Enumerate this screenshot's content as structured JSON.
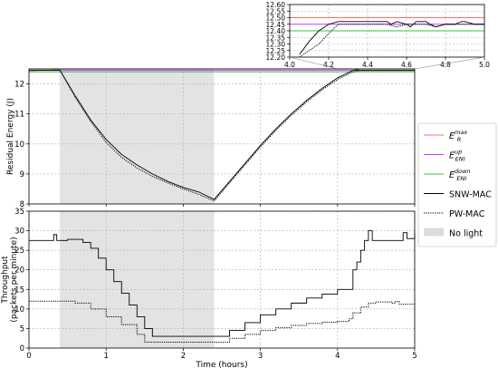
{
  "chart_data": [
    {
      "id": "energy",
      "type": "line",
      "title": "",
      "xlabel": "",
      "ylabel": "Residual Energy (J)",
      "xlim": [
        0,
        5
      ],
      "ylim": [
        8,
        12.5
      ],
      "xticks": [
        0,
        1,
        2,
        3,
        4,
        5
      ],
      "yticks": [
        8,
        9,
        10,
        11,
        12
      ],
      "ytick_labels": [
        "8",
        "9",
        "10",
        "11",
        "12"
      ],
      "grid": true,
      "shaded_region": {
        "x": [
          0.4,
          2.4
        ],
        "label": "No light"
      },
      "hlines": [
        {
          "name": "E_R^max",
          "value": 12.5,
          "color": "#ff6b6b"
        },
        {
          "name": "E_ENI^up",
          "value": 12.45,
          "color": "#c33cff"
        },
        {
          "name": "E_ENI^down",
          "value": 12.4,
          "color": "#3fbf3f"
        }
      ],
      "series": [
        {
          "name": "SNW-MAC",
          "style": "solid",
          "x": [
            0,
            0.4,
            0.6,
            0.8,
            1.0,
            1.2,
            1.4,
            1.6,
            1.8,
            2.0,
            2.2,
            2.4,
            2.6,
            2.8,
            3.0,
            3.2,
            3.4,
            3.6,
            3.8,
            4.0,
            4.2,
            4.25,
            4.3,
            4.4,
            4.6,
            4.8,
            5.0
          ],
          "values": [
            12.45,
            12.46,
            11.6,
            10.8,
            10.15,
            9.65,
            9.3,
            9.0,
            8.75,
            8.55,
            8.4,
            8.15,
            8.75,
            9.35,
            9.95,
            10.5,
            11.0,
            11.45,
            11.85,
            12.2,
            12.45,
            12.47,
            12.45,
            12.45,
            12.45,
            12.45,
            12.45
          ]
        },
        {
          "name": "PW-MAC",
          "style": "dotted",
          "x": [
            0,
            0.4,
            0.6,
            0.8,
            1.0,
            1.2,
            1.4,
            1.6,
            1.8,
            2.0,
            2.2,
            2.4,
            2.6,
            2.8,
            3.0,
            3.2,
            3.4,
            3.6,
            3.8,
            4.0,
            4.2,
            4.3,
            4.4,
            4.6,
            4.8,
            5.0
          ],
          "values": [
            12.45,
            12.46,
            11.55,
            10.75,
            10.05,
            9.55,
            9.2,
            8.92,
            8.7,
            8.5,
            8.32,
            8.1,
            8.7,
            9.3,
            9.9,
            10.45,
            10.95,
            11.4,
            11.8,
            12.15,
            12.4,
            12.45,
            12.45,
            12.45,
            12.45,
            12.45
          ]
        }
      ]
    },
    {
      "id": "throughput",
      "type": "line",
      "title": "",
      "xlabel": "Time (hours)",
      "ylabel_line1": "Throughput",
      "ylabel_line2": "(packets per minute)",
      "xlim": [
        0,
        5
      ],
      "ylim": [
        0,
        35
      ],
      "xticks": [
        0,
        1,
        2,
        3,
        4,
        5
      ],
      "yticks": [
        0,
        5,
        10,
        15,
        20,
        25,
        30,
        35
      ],
      "grid": true,
      "shaded_region": {
        "x": [
          0.4,
          2.4
        ],
        "label": "No light"
      },
      "series": [
        {
          "name": "SNW-MAC",
          "style": "solid",
          "step": true,
          "x": [
            0,
            0.3,
            0.32,
            0.36,
            0.5,
            0.7,
            0.8,
            0.9,
            1.0,
            1.1,
            1.2,
            1.3,
            1.4,
            1.5,
            1.6,
            2.4,
            2.6,
            2.8,
            3.0,
            3.2,
            3.4,
            3.6,
            3.8,
            4.0,
            4.15,
            4.2,
            4.25,
            4.3,
            4.35,
            4.4,
            4.45,
            4.5,
            4.6,
            4.8,
            4.85,
            4.9,
            5.0
          ],
          "values": [
            27.5,
            27.5,
            29,
            27.5,
            27.8,
            27.0,
            25.5,
            23.0,
            20.0,
            17.0,
            14.0,
            11.0,
            8.0,
            5.0,
            3.0,
            3.0,
            4.5,
            6.5,
            8.5,
            10.0,
            11.5,
            12.8,
            13.8,
            15.0,
            15.0,
            20.0,
            22.0,
            25.0,
            27.5,
            30.0,
            27.5,
            27.5,
            27.5,
            27.5,
            29.5,
            28.0,
            29.5
          ]
        },
        {
          "name": "PW-MAC",
          "style": "dotted",
          "step": true,
          "x": [
            0,
            0.4,
            0.6,
            0.8,
            1.0,
            1.2,
            1.4,
            1.5,
            2.4,
            2.6,
            2.8,
            3.0,
            3.2,
            3.4,
            3.6,
            3.8,
            4.0,
            4.15,
            4.2,
            4.3,
            4.4,
            4.5,
            4.7,
            4.75,
            4.8,
            5.0
          ],
          "values": [
            12.0,
            12.0,
            11.5,
            10.0,
            8.0,
            6.0,
            3.5,
            1.5,
            1.5,
            2.5,
            3.5,
            4.5,
            5.2,
            5.8,
            6.3,
            6.6,
            6.8,
            7.5,
            9.0,
            10.5,
            11.5,
            11.8,
            11.5,
            11.9,
            11.2,
            11.2
          ]
        }
      ]
    },
    {
      "id": "inset",
      "type": "line",
      "title": "",
      "xlim": [
        4.0,
        5.0
      ],
      "ylim": [
        12.2,
        12.6
      ],
      "xticks": [
        4.0,
        4.2,
        4.4,
        4.6,
        4.8,
        5.0
      ],
      "xtick_labels": [
        "4.0",
        "4.2",
        "4.4",
        "4.6",
        "4.8",
        "5.0"
      ],
      "yticks": [
        12.2,
        12.25,
        12.3,
        12.35,
        12.4,
        12.45,
        12.5,
        12.55,
        12.6
      ],
      "ytick_labels": [
        "12.20",
        "12.25",
        "12.30",
        "12.35",
        "12.40",
        "12.45",
        "12.50",
        "12.55",
        "12.60"
      ],
      "grid": true,
      "hlines": [
        {
          "name": "E_R^max",
          "value": 12.5,
          "color": "#ff6b6b"
        },
        {
          "name": "E_ENI^up",
          "value": 12.45,
          "color": "#c33cff"
        },
        {
          "name": "E_ENI^down",
          "value": 12.4,
          "color": "#3fbf3f"
        }
      ],
      "series": [
        {
          "name": "SNW-MAC",
          "style": "solid",
          "x": [
            4.05,
            4.1,
            4.15,
            4.2,
            4.25,
            4.3,
            4.35,
            4.4,
            4.45,
            4.5,
            4.52,
            4.55,
            4.6,
            4.62,
            4.65,
            4.7,
            4.72,
            4.75,
            4.8,
            4.85,
            4.88,
            4.9,
            4.95,
            5.0
          ],
          "values": [
            12.22,
            12.32,
            12.4,
            12.45,
            12.47,
            12.47,
            12.47,
            12.47,
            12.47,
            12.47,
            12.45,
            12.47,
            12.45,
            12.43,
            12.47,
            12.47,
            12.45,
            12.43,
            12.45,
            12.45,
            12.47,
            12.47,
            12.45,
            12.45
          ]
        },
        {
          "name": "PW-MAC",
          "style": "dotted",
          "x": [
            4.05,
            4.1,
            4.15,
            4.2,
            4.25,
            4.3,
            4.35,
            4.4,
            4.45,
            4.5,
            4.55,
            4.6,
            4.65,
            4.7,
            4.75,
            4.8,
            4.85,
            4.9,
            4.95,
            5.0
          ],
          "values": [
            12.2,
            12.25,
            12.3,
            12.38,
            12.45,
            12.45,
            12.45,
            12.45,
            12.45,
            12.45,
            12.43,
            12.45,
            12.45,
            12.45,
            12.43,
            12.45,
            12.45,
            12.45,
            12.45,
            12.45
          ]
        }
      ]
    }
  ],
  "legend": {
    "placement": "right",
    "entries": [
      {
        "label": "E",
        "sup": "max",
        "sub": "R",
        "color": "#ff6b6b",
        "style": "line"
      },
      {
        "label": "E",
        "sup": "up",
        "sub": "ENI",
        "color": "#c33cff",
        "style": "line"
      },
      {
        "label": "E",
        "sup": "down",
        "sub": "ENI",
        "color": "#3fbf3f",
        "style": "line"
      },
      {
        "label": "SNW-MAC",
        "color": "#000000",
        "style": "solid"
      },
      {
        "label": "PW-MAC",
        "color": "#000000",
        "style": "dotted"
      },
      {
        "label": "No light",
        "color": "#dcdcdc",
        "style": "patch"
      }
    ]
  }
}
